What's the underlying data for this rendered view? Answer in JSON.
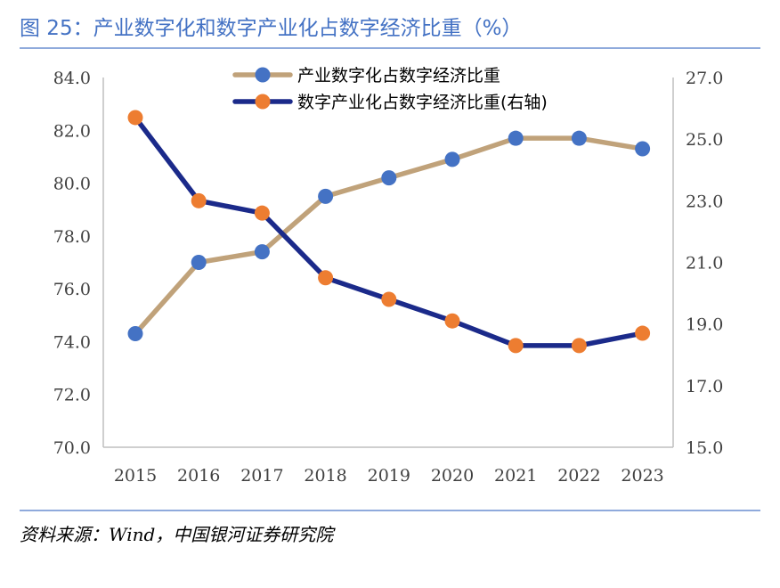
{
  "figure": {
    "title": "图 25：产业数字化和数字产业化占数字经济比重（%）",
    "source": "资料来源：Wind，中国银河证券研究院"
  },
  "chart_data": {
    "type": "line",
    "categories": [
      "2015",
      "2016",
      "2017",
      "2018",
      "2019",
      "2020",
      "2021",
      "2022",
      "2023"
    ],
    "series": [
      {
        "name": "产业数字化占数字经济比重",
        "axis": "left",
        "line_color": "#c0a27a",
        "marker_color": "#4472c4",
        "values": [
          74.3,
          77.0,
          77.4,
          79.5,
          80.2,
          80.9,
          81.7,
          81.7,
          81.3
        ]
      },
      {
        "name": "数字产业化占数字经济比重(右轴)",
        "axis": "right",
        "line_color": "#1b2a8a",
        "marker_color": "#ed7d31",
        "values": [
          25.7,
          23.0,
          22.6,
          20.5,
          19.8,
          19.1,
          18.3,
          18.3,
          18.7
        ]
      }
    ],
    "y_left": {
      "min": 70,
      "max": 84,
      "ticks": [
        "70.0",
        "72.0",
        "74.0",
        "76.0",
        "78.0",
        "80.0",
        "82.0",
        "84.0"
      ]
    },
    "y_right": {
      "min": 15,
      "max": 27,
      "ticks": [
        "15.0",
        "17.0",
        "19.0",
        "21.0",
        "23.0",
        "25.0",
        "27.0"
      ]
    },
    "legend_position": "top-center",
    "grid": false
  }
}
